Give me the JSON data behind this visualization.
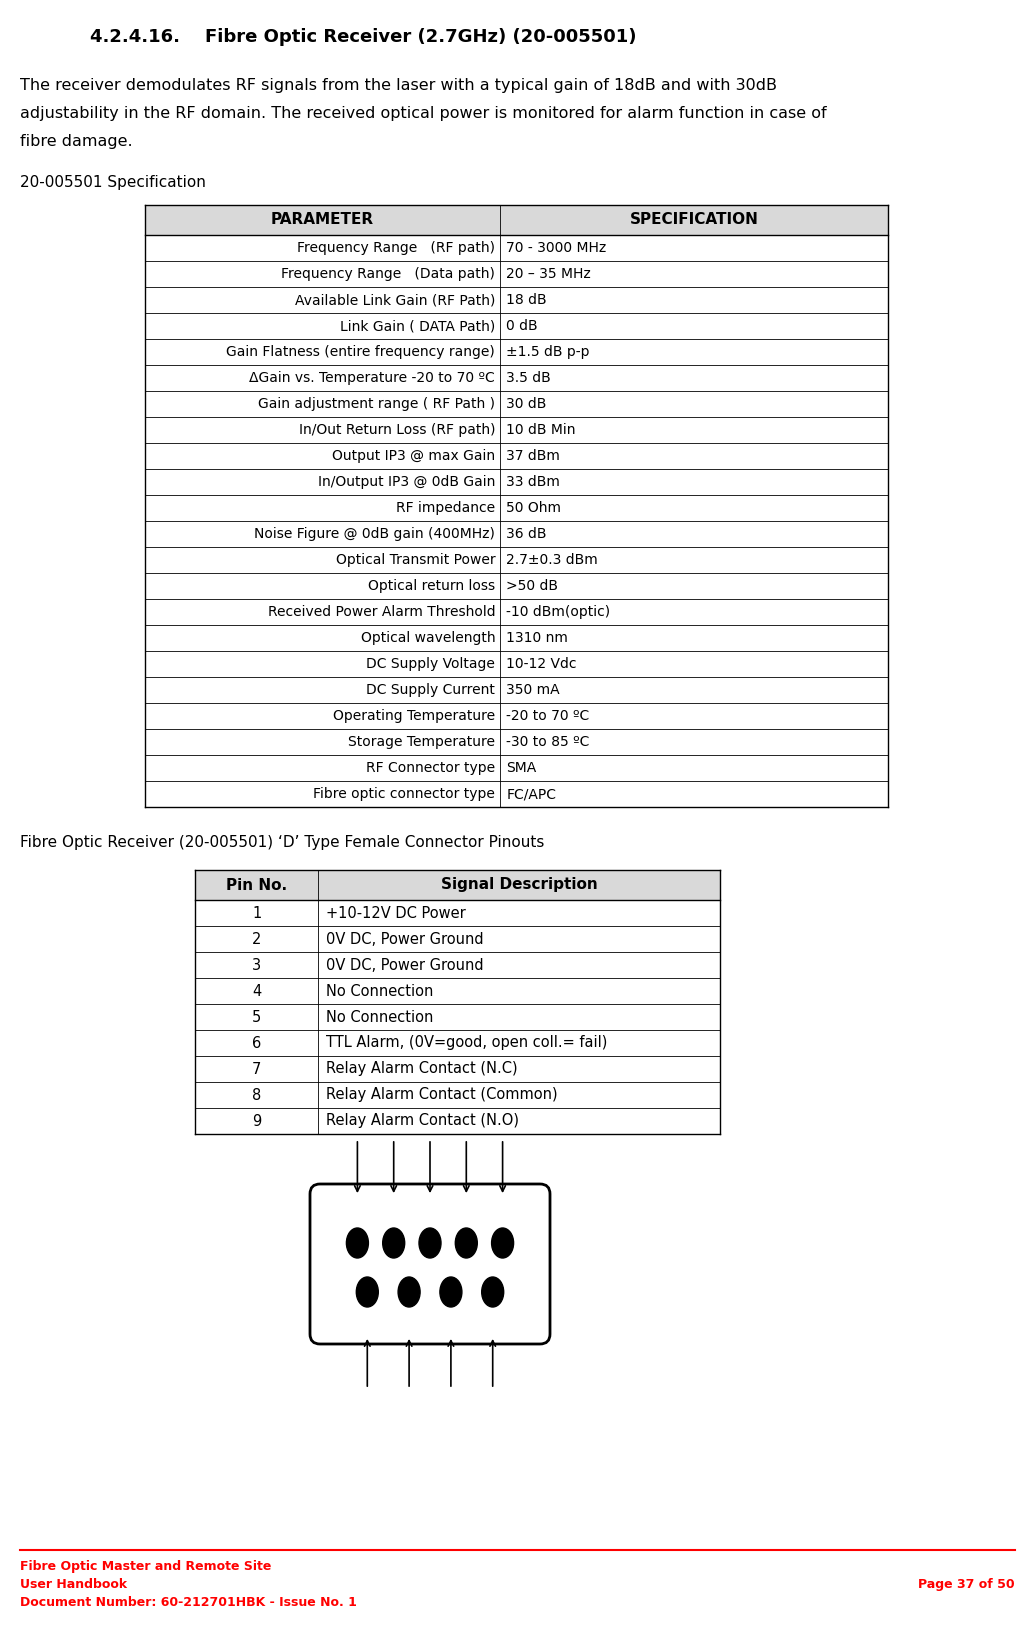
{
  "title": "4.2.4.16.    Fibre Optic Receiver (2.7GHz) (20-005501)",
  "body_lines": [
    "The receiver demodulates RF signals from the laser with a typical gain of 18dB and with 30dB",
    "adjustability in the RF domain. The received optical power is monitored for alarm function in case of",
    "fibre damage."
  ],
  "spec_label": "20-005501 Specification",
  "spec_headers": [
    "PARAMETER",
    "SPECIFICATION"
  ],
  "spec_rows": [
    [
      "Frequency Range   (RF path)",
      "70 - 3000 MHz"
    ],
    [
      "Frequency Range   (Data path)",
      "20 – 35 MHz"
    ],
    [
      "Available Link Gain (RF Path)",
      "18 dB"
    ],
    [
      "Link Gain ( DATA Path)",
      "0 dB"
    ],
    [
      "Gain Flatness (entire frequency range)",
      "±1.5 dB p-p"
    ],
    [
      "ΔGain vs. Temperature -20 to 70 ºC",
      "3.5 dB"
    ],
    [
      "Gain adjustment range ( RF Path )",
      "30 dB"
    ],
    [
      "In/Out Return Loss (RF path)",
      "10 dB Min"
    ],
    [
      "Output IP3 @ max Gain",
      "37 dBm"
    ],
    [
      "In/Output IP3 @ 0dB Gain",
      "33 dBm"
    ],
    [
      "RF impedance",
      "50 Ohm"
    ],
    [
      "Noise Figure @ 0dB gain (400MHz)",
      "36 dB"
    ],
    [
      "Optical Transmit Power",
      "2.7±0.3 dBm"
    ],
    [
      "Optical return loss",
      ">50 dB"
    ],
    [
      "Received Power Alarm Threshold",
      "-10 dBm(optic)"
    ],
    [
      "Optical wavelength",
      "1310 nm"
    ],
    [
      "DC Supply Voltage",
      "10-12 Vdc"
    ],
    [
      "DC Supply Current",
      "350 mA"
    ],
    [
      "Operating Temperature",
      "-20 to 70 ºC"
    ],
    [
      "Storage Temperature",
      "-30 to 85 ºC"
    ],
    [
      "RF Connector type",
      "SMA"
    ],
    [
      "Fibre optic connector type",
      "FC/APC"
    ]
  ],
  "pinout_label": "Fibre Optic Receiver (20-005501) ‘D’ Type Female Connector Pinouts",
  "pin_headers": [
    "Pin No.",
    "Signal Description"
  ],
  "pin_rows": [
    [
      "1",
      "+10-12V DC Power"
    ],
    [
      "2",
      "0V DC, Power Ground"
    ],
    [
      "3",
      "0V DC, Power Ground"
    ],
    [
      "4",
      "No Connection"
    ],
    [
      "5",
      "No Connection"
    ],
    [
      "6",
      "TTL Alarm, (0V=good, open coll.= fail)"
    ],
    [
      "7",
      "Relay Alarm Contact (N.C)"
    ],
    [
      "8",
      "Relay Alarm Contact (Common)"
    ],
    [
      "9",
      "Relay Alarm Contact (N.O)"
    ]
  ],
  "footer_left": "Fibre Optic Master and Remote Site\nUser Handbook\nDocument Number: 60-212701HBK - Issue No. 1",
  "footer_right": "Page 37 of 50",
  "header_color": "#d9d9d9",
  "border_color": "#000000",
  "text_color": "#000000",
  "red_color": "#ff0000",
  "bg_color": "#ffffff"
}
